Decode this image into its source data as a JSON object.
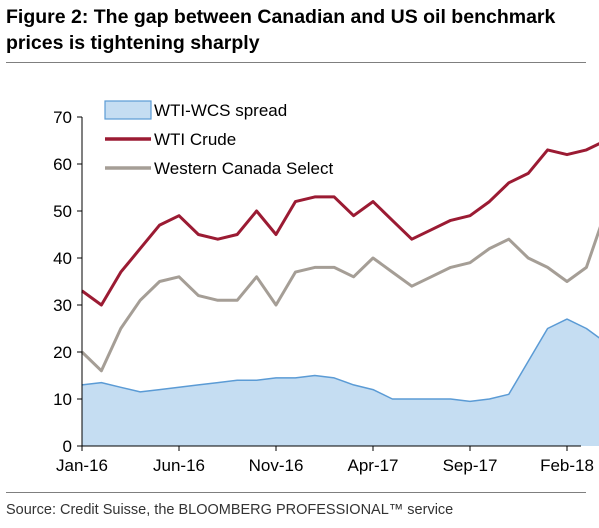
{
  "title": "Figure 2: The gap between Canadian and US oil benchmark prices is tightening sharply",
  "source": "Source: Credit Suisse, the BLOOMBERG PROFESSIONAL™ service",
  "colors": {
    "spread_fill": "#c5ddf2",
    "spread_line": "#5b9bd5",
    "wti": "#9b1b33",
    "wcs": "#a59e96"
  },
  "chart_data": {
    "type": "line",
    "title": "Figure 2: The gap between Canadian and US oil benchmark prices is tightening sharply",
    "xlabel": "",
    "ylabel": "",
    "ylim": [
      0,
      70
    ],
    "yticks": [
      0,
      10,
      20,
      30,
      40,
      50,
      60,
      70
    ],
    "xticks": [
      "Jan-16",
      "Jun-16",
      "Nov-16",
      "Apr-17",
      "Sep-17",
      "Feb-18"
    ],
    "grid": false,
    "legend": "top-left",
    "x": [
      "2016-01",
      "2016-02",
      "2016-03",
      "2016-04",
      "2016-05",
      "2016-06",
      "2016-07",
      "2016-08",
      "2016-09",
      "2016-10",
      "2016-11",
      "2016-12",
      "2017-01",
      "2017-02",
      "2017-03",
      "2017-04",
      "2017-05",
      "2017-06",
      "2017-07",
      "2017-08",
      "2017-09",
      "2017-10",
      "2017-11",
      "2017-12",
      "2018-01",
      "2018-02",
      "2018-03",
      "2018-04"
    ],
    "series": [
      {
        "name": "WTI-WCS spread",
        "style": "area",
        "values": [
          13,
          13.5,
          12.5,
          11.5,
          12,
          12.5,
          13,
          13.5,
          14,
          14,
          14.5,
          14.5,
          15,
          14.5,
          13,
          12,
          10,
          10,
          10,
          10,
          9.5,
          10,
          11,
          18,
          25,
          27,
          25,
          22
        ]
      },
      {
        "name": "WTI Crude",
        "style": "line",
        "values": [
          33,
          30,
          37,
          42,
          47,
          49,
          45,
          44,
          45,
          50,
          45,
          52,
          53,
          53,
          49,
          52,
          48,
          44,
          46,
          48,
          49,
          52,
          56,
          58,
          63,
          62,
          63,
          65
        ]
      },
      {
        "name": "Western Canada Select",
        "style": "line",
        "values": [
          20,
          16,
          25,
          31,
          35,
          36,
          32,
          31,
          31,
          36,
          30,
          37,
          38,
          38,
          36,
          40,
          37,
          34,
          36,
          38,
          39,
          42,
          44,
          40,
          38,
          35,
          38,
          50
        ]
      }
    ]
  }
}
